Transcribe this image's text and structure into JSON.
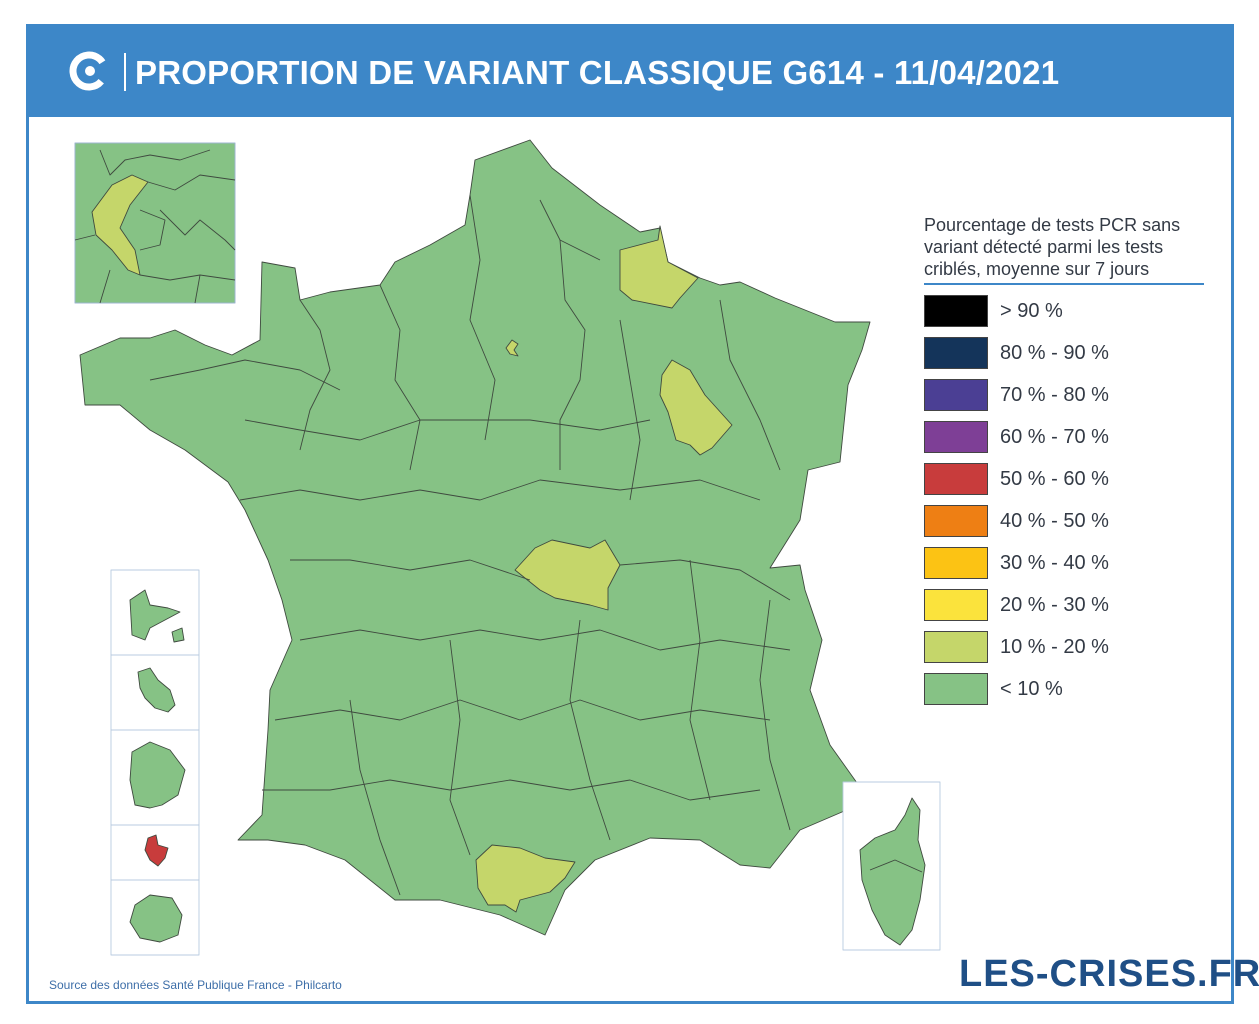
{
  "header": {
    "title": "PROPORTION DE VARIANT CLASSIQUE G614 - 11/04/2021"
  },
  "legend": {
    "title_lines": [
      "Pourcentage de tests PCR sans",
      "variant détecté parmi les tests",
      "criblés, moyenne sur 7 jours"
    ],
    "items": [
      {
        "label": "> 90 %",
        "color": "#000000"
      },
      {
        "label": "80 % - 90 %",
        "color": "#14345a"
      },
      {
        "label": "70 % - 80 %",
        "color": "#4b3f94"
      },
      {
        "label": "60 % - 70 %",
        "color": "#7e3f96"
      },
      {
        "label": "50 % - 60 %",
        "color": "#c83c3c"
      },
      {
        "label": "40 % - 50 %",
        "color": "#ee7f14"
      },
      {
        "label": "30 % - 40 %",
        "color": "#fcc314"
      },
      {
        "label": "20 % - 30 %",
        "color": "#fbe33c"
      },
      {
        "label": "10 % - 20 %",
        "color": "#c5d66a"
      },
      {
        "label": "< 10 %",
        "color": "#86c285"
      }
    ]
  },
  "map": {
    "default_class": "< 10 %",
    "highlighted_10_20": [
      "Paris (75)",
      "Aisne (02)",
      "Haute-Marne (52)",
      "Nièvre (58)",
      "Aude (11)"
    ],
    "highlighted_50_60": [
      "Mayotte (976)"
    ]
  },
  "footer": {
    "source": "Source des données Santé Publique France - Philcarto",
    "brand": "LES-CRISES.FR"
  }
}
